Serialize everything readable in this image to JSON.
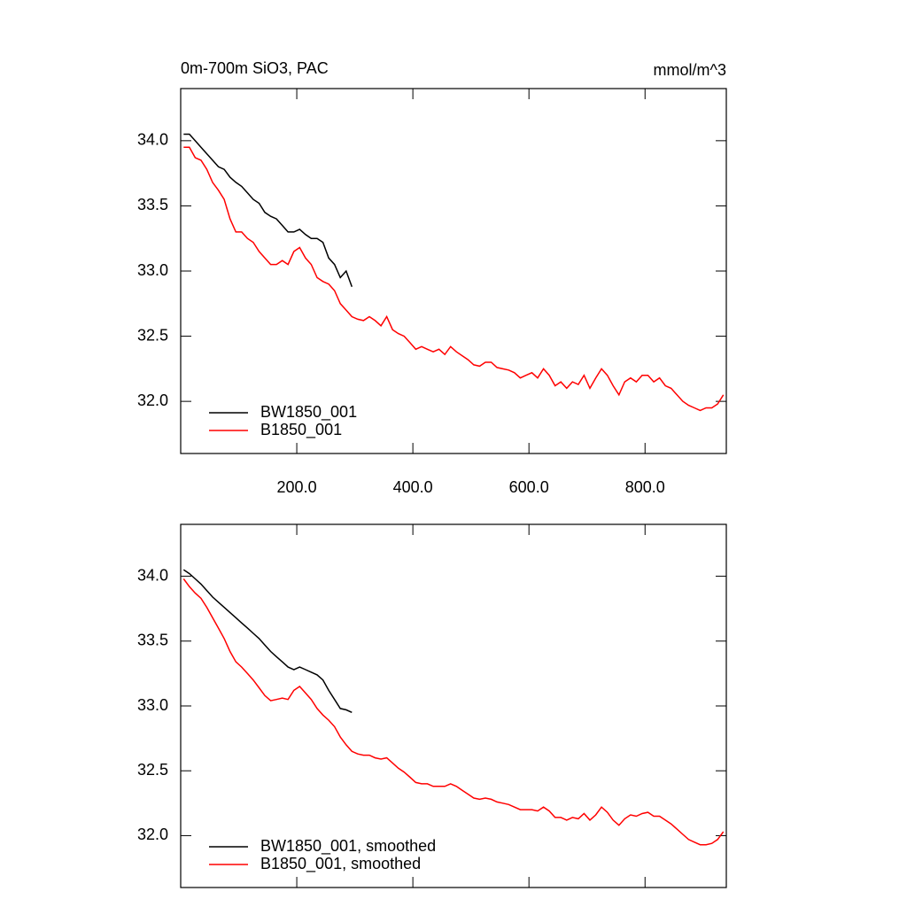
{
  "chart_data": [
    {
      "type": "line",
      "title": "0m-700m SiO3, PAC",
      "units": "mmol/m^3",
      "xlim": [
        0,
        940
      ],
      "ylim": [
        31.6,
        34.4
      ],
      "xticks": [
        {
          "value": 200,
          "label": "200.0"
        },
        {
          "value": 400,
          "label": "400.0"
        },
        {
          "value": 600,
          "label": "600.0"
        },
        {
          "value": 800,
          "label": "800.0"
        }
      ],
      "yticks": [
        {
          "value": 32,
          "label": "32.0"
        },
        {
          "value": 32.5,
          "label": "32.5"
        },
        {
          "value": 33,
          "label": "33.0"
        },
        {
          "value": 33.5,
          "label": "33.5"
        },
        {
          "value": 34,
          "label": "34.0"
        }
      ],
      "show_xtick_labels": true,
      "legend": "lower-left",
      "x": [
        5,
        15,
        25,
        35,
        45,
        55,
        65,
        75,
        85,
        95,
        105,
        115,
        125,
        135,
        145,
        155,
        165,
        175,
        185,
        195,
        205,
        215,
        225,
        235,
        245,
        255,
        265,
        275,
        285,
        295,
        305,
        315,
        325,
        335,
        345,
        355,
        365,
        375,
        385,
        395,
        405,
        415,
        425,
        435,
        445,
        455,
        465,
        475,
        485,
        495,
        505,
        515,
        525,
        535,
        545,
        555,
        565,
        575,
        585,
        595,
        605,
        615,
        625,
        635,
        645,
        655,
        665,
        675,
        685,
        695,
        705,
        715,
        725,
        735,
        745,
        755,
        765,
        775,
        785,
        795,
        805,
        815,
        825,
        835,
        845,
        855,
        865,
        875,
        885,
        895,
        905,
        915,
        925,
        935
      ],
      "series": [
        {
          "name": "BW1850_001",
          "color": "#000000",
          "values": [
            34.05,
            34.05,
            34.0,
            33.95,
            33.9,
            33.85,
            33.8,
            33.78,
            33.72,
            33.68,
            33.65,
            33.6,
            33.55,
            33.52,
            33.45,
            33.42,
            33.4,
            33.35,
            33.3,
            33.3,
            33.32,
            33.28,
            33.25,
            33.25,
            33.22,
            33.1,
            33.05,
            32.95,
            33.0,
            32.88,
            null,
            null,
            null,
            null,
            null,
            null,
            null,
            null,
            null,
            null,
            null,
            null,
            null,
            null,
            null,
            null,
            null,
            null,
            null,
            null,
            null,
            null,
            null,
            null,
            null,
            null,
            null,
            null,
            null,
            null,
            null,
            null,
            null,
            null,
            null,
            null,
            null,
            null,
            null,
            null,
            null,
            null,
            null,
            null,
            null,
            null,
            null,
            null,
            null,
            null,
            null,
            null,
            null,
            null,
            null,
            null,
            null,
            null,
            null,
            null,
            null,
            null,
            null,
            null
          ]
        },
        {
          "name": "B1850_001",
          "color": "#ff0000",
          "values": [
            33.95,
            33.95,
            33.87,
            33.85,
            33.78,
            33.68,
            33.62,
            33.55,
            33.4,
            33.3,
            33.3,
            33.25,
            33.22,
            33.15,
            33.1,
            33.05,
            33.05,
            33.08,
            33.05,
            33.15,
            33.18,
            33.1,
            33.05,
            32.95,
            32.92,
            32.9,
            32.85,
            32.75,
            32.7,
            32.65,
            32.63,
            32.62,
            32.65,
            32.62,
            32.58,
            32.65,
            32.55,
            32.52,
            32.5,
            32.45,
            32.4,
            32.42,
            32.4,
            32.38,
            32.4,
            32.36,
            32.42,
            32.38,
            32.35,
            32.32,
            32.28,
            32.27,
            32.3,
            32.3,
            32.26,
            32.25,
            32.24,
            32.22,
            32.18,
            32.2,
            32.22,
            32.18,
            32.25,
            32.2,
            32.12,
            32.15,
            32.1,
            32.15,
            32.13,
            32.2,
            32.1,
            32.18,
            32.25,
            32.2,
            32.12,
            32.05,
            32.15,
            32.18,
            32.15,
            32.2,
            32.2,
            32.15,
            32.18,
            32.12,
            32.1,
            32.05,
            32.0,
            31.97,
            31.95,
            31.93,
            31.95,
            31.95,
            31.98,
            32.05
          ]
        }
      ]
    },
    {
      "type": "line",
      "xlim": [
        0,
        940
      ],
      "ylim": [
        31.6,
        34.4
      ],
      "xticks": [
        200,
        400,
        600,
        800
      ],
      "yticks": [
        {
          "value": 32,
          "label": "32.0"
        },
        {
          "value": 32.5,
          "label": "32.5"
        },
        {
          "value": 33,
          "label": "33.0"
        },
        {
          "value": 33.5,
          "label": "33.5"
        },
        {
          "value": 34,
          "label": "34.0"
        }
      ],
      "show_xtick_labels": false,
      "legend": "lower-left",
      "x": [
        5,
        15,
        25,
        35,
        45,
        55,
        65,
        75,
        85,
        95,
        105,
        115,
        125,
        135,
        145,
        155,
        165,
        175,
        185,
        195,
        205,
        215,
        225,
        235,
        245,
        255,
        265,
        275,
        285,
        295,
        305,
        315,
        325,
        335,
        345,
        355,
        365,
        375,
        385,
        395,
        405,
        415,
        425,
        435,
        445,
        455,
        465,
        475,
        485,
        495,
        505,
        515,
        525,
        535,
        545,
        555,
        565,
        575,
        585,
        595,
        605,
        615,
        625,
        635,
        645,
        655,
        665,
        675,
        685,
        695,
        705,
        715,
        725,
        735,
        745,
        755,
        765,
        775,
        785,
        795,
        805,
        815,
        825,
        835,
        845,
        855,
        865,
        875,
        885,
        895,
        905,
        915,
        925,
        935
      ],
      "series": [
        {
          "name": "BW1850_001, smoothed",
          "color": "#000000",
          "values": [
            34.05,
            34.02,
            33.98,
            33.94,
            33.89,
            33.84,
            33.8,
            33.76,
            33.72,
            33.68,
            33.64,
            33.6,
            33.56,
            33.52,
            33.47,
            33.42,
            33.38,
            33.34,
            33.3,
            33.28,
            33.3,
            33.28,
            33.26,
            33.24,
            33.2,
            33.12,
            33.05,
            32.98,
            32.97,
            32.95,
            null,
            null,
            null,
            null,
            null,
            null,
            null,
            null,
            null,
            null,
            null,
            null,
            null,
            null,
            null,
            null,
            null,
            null,
            null,
            null,
            null,
            null,
            null,
            null,
            null,
            null,
            null,
            null,
            null,
            null,
            null,
            null,
            null,
            null,
            null,
            null,
            null,
            null,
            null,
            null,
            null,
            null,
            null,
            null,
            null,
            null,
            null,
            null,
            null,
            null,
            null,
            null,
            null,
            null,
            null,
            null,
            null,
            null,
            null,
            null,
            null,
            null,
            null,
            null
          ]
        },
        {
          "name": "B1850_001, smoothed",
          "color": "#ff0000",
          "values": [
            33.98,
            33.92,
            33.87,
            33.83,
            33.76,
            33.68,
            33.6,
            33.52,
            33.42,
            33.34,
            33.3,
            33.25,
            33.2,
            33.14,
            33.08,
            33.04,
            33.05,
            33.06,
            33.05,
            33.12,
            33.15,
            33.1,
            33.05,
            32.98,
            32.93,
            32.89,
            32.84,
            32.76,
            32.7,
            32.65,
            32.63,
            32.62,
            32.62,
            32.6,
            32.59,
            32.6,
            32.56,
            32.52,
            32.49,
            32.45,
            32.41,
            32.4,
            32.4,
            32.38,
            32.38,
            32.38,
            32.4,
            32.38,
            32.35,
            32.32,
            32.29,
            32.28,
            32.29,
            32.28,
            32.26,
            32.25,
            32.24,
            32.22,
            32.2,
            32.2,
            32.2,
            32.19,
            32.22,
            32.19,
            32.14,
            32.14,
            32.12,
            32.14,
            32.13,
            32.17,
            32.12,
            32.16,
            32.22,
            32.18,
            32.12,
            32.08,
            32.13,
            32.16,
            32.15,
            32.17,
            32.18,
            32.15,
            32.15,
            32.12,
            32.09,
            32.05,
            32.01,
            31.97,
            31.95,
            31.93,
            31.93,
            31.94,
            31.97,
            32.03
          ]
        }
      ]
    }
  ]
}
